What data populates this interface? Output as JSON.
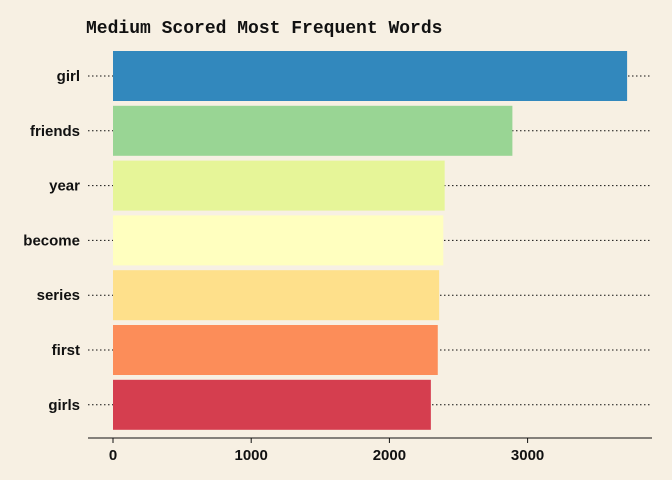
{
  "chart_data": {
    "type": "bar",
    "orientation": "horizontal",
    "title": "Medium Scored Most Frequent Words",
    "xlabel": "",
    "ylabel": "",
    "categories": [
      "girl",
      "friends",
      "year",
      "become",
      "series",
      "first",
      "girls"
    ],
    "values": [
      3720,
      2890,
      2400,
      2390,
      2360,
      2350,
      2300
    ],
    "colors": [
      "#3288bd",
      "#99d594",
      "#e6f598",
      "#ffffbf",
      "#fee08b",
      "#fc8d59",
      "#d53e4f"
    ],
    "xlim": [
      0,
      3800
    ],
    "xticks": [
      0,
      1000,
      2000,
      3000
    ],
    "xtick_labels": [
      "0",
      "1000",
      "2000",
      "3000"
    ],
    "grid": "dotted horizontal lines at categories",
    "legend": "none",
    "background": "#f7f0e3"
  }
}
